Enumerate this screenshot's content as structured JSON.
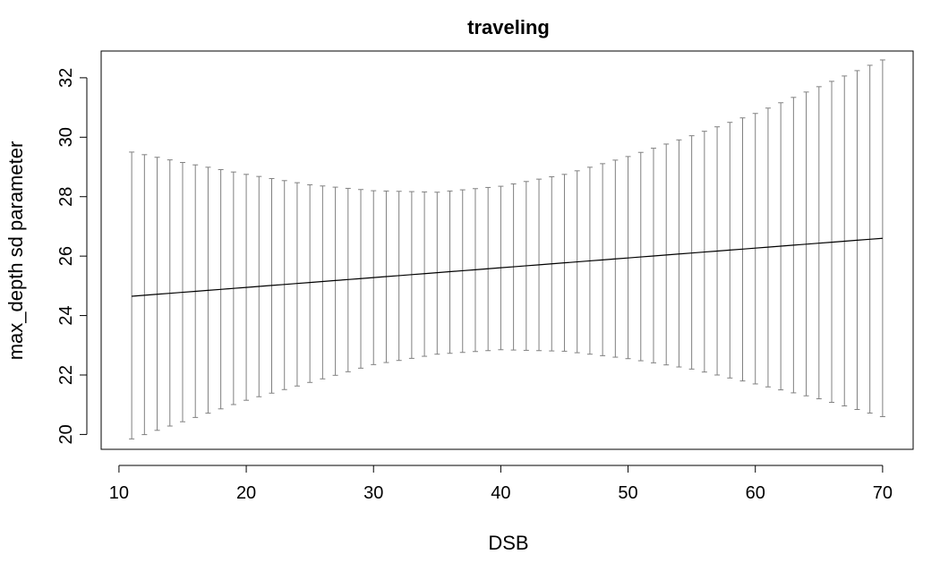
{
  "chart_data": {
    "type": "line",
    "title": "traveling",
    "xlabel": "DSB",
    "ylabel": "max_depth sd parameter",
    "xlim": [
      8.6,
      72.4
    ],
    "ylim": [
      19.5,
      32.9
    ],
    "x_ticks": [
      10,
      20,
      30,
      40,
      50,
      60,
      70
    ],
    "y_ticks": [
      20,
      22,
      24,
      26,
      28,
      30,
      32
    ],
    "grid": false,
    "series": [
      {
        "x_start": 11,
        "x_end": 70,
        "step": 1,
        "mean_start": 24.65,
        "mean_end": 26.6,
        "lower_knots": [
          [
            11,
            19.85
          ],
          [
            20,
            21.15
          ],
          [
            30,
            22.35
          ],
          [
            35,
            22.7
          ],
          [
            40,
            22.85
          ],
          [
            45,
            22.8
          ],
          [
            50,
            22.55
          ],
          [
            55,
            22.2
          ],
          [
            60,
            21.7
          ],
          [
            65,
            21.2
          ],
          [
            70,
            20.6
          ]
        ],
        "upper_knots": [
          [
            11,
            29.5
          ],
          [
            15,
            29.15
          ],
          [
            20,
            28.75
          ],
          [
            25,
            28.4
          ],
          [
            30,
            28.2
          ],
          [
            35,
            28.15
          ],
          [
            40,
            28.35
          ],
          [
            45,
            28.75
          ],
          [
            50,
            29.35
          ],
          [
            55,
            30.05
          ],
          [
            60,
            30.8
          ],
          [
            65,
            31.7
          ],
          [
            70,
            32.6
          ]
        ]
      }
    ],
    "colors": {
      "mean_line": "#000000",
      "error_bars": "#808080",
      "axes": "#000000"
    }
  }
}
